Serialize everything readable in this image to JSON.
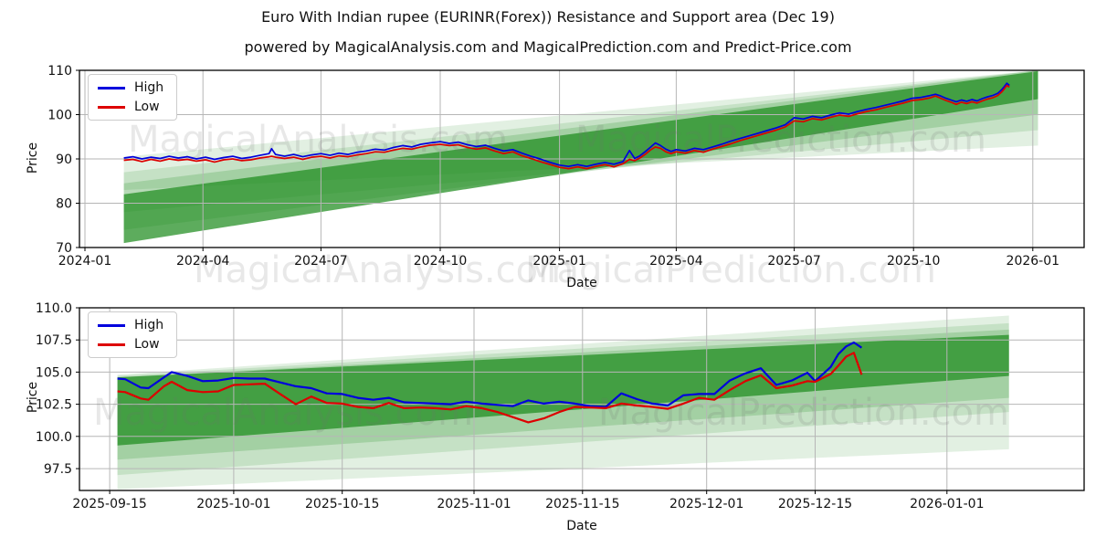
{
  "title": "Euro With Indian rupee (EURINR(Forex)) Resistance and Support area (Dec 19)",
  "subtitle": "powered by MagicalAnalysis.com and MagicalPrediction.com and Predict-Price.com",
  "watermarks": {
    "analysis": "MagicalAnalysis.com",
    "prediction": "MagicalPrediction.com"
  },
  "legend": {
    "high_label": "High",
    "low_label": "Low"
  },
  "axis": {
    "x_label": "Date",
    "y_label": "Price"
  },
  "colors": {
    "high": "#0000dd",
    "low": "#dd0000",
    "band": "#1f8c1f",
    "grid": "#b6b6b6",
    "spine": "#000000",
    "text": "#111111",
    "wm": "rgba(110,110,110,0.16)"
  },
  "chart_data": [
    {
      "type": "line",
      "name": "full-history",
      "x_epoch": "2024-01-01",
      "x_tick_labels": [
        "2024-01",
        "2024-04",
        "2024-07",
        "2024-10",
        "2025-01",
        "2025-04",
        "2025-07",
        "2025-10",
        "2026-01"
      ],
      "x_tick_days": [
        0,
        91,
        182,
        274,
        366,
        456,
        547,
        639,
        731
      ],
      "y_tick_labels": [
        "70",
        "80",
        "90",
        "100",
        "110"
      ],
      "y_tick_values": [
        70,
        80,
        90,
        100,
        110
      ],
      "xlim_days": [
        -4.2,
        770.6
      ],
      "ylim": [
        70,
        110
      ],
      "grid": true,
      "legend_position": "upper-left",
      "bands": [
        {
          "day_start": 30,
          "day_end": 735,
          "price_start": [
            83,
            90.5
          ],
          "price_end": [
            93,
            110
          ],
          "alpha": 0.13
        },
        {
          "day_start": 30,
          "day_end": 735,
          "price_start": [
            78,
            87
          ],
          "price_end": [
            96.5,
            110
          ],
          "alpha": 0.15
        },
        {
          "day_start": 30,
          "day_end": 735,
          "price_start": [
            74,
            84.5
          ],
          "price_end": [
            100,
            110
          ],
          "alpha": 0.2
        },
        {
          "day_start": 30,
          "day_end": 735,
          "price_start": [
            71,
            82
          ],
          "price_end": [
            103.5,
            109.8
          ],
          "alpha": 0.72
        }
      ],
      "series": [
        {
          "name": "High",
          "color_key": "high",
          "days": [
            30,
            37,
            44,
            51,
            58,
            65,
            72,
            79,
            86,
            93,
            100,
            107,
            114,
            121,
            128,
            135,
            142,
            144,
            147,
            154,
            161,
            168,
            175,
            182,
            189,
            196,
            203,
            210,
            217,
            224,
            231,
            238,
            245,
            252,
            259,
            266,
            274,
            281,
            288,
            295,
            302,
            309,
            316,
            323,
            330,
            337,
            344,
            351,
            358,
            366,
            373,
            380,
            387,
            394,
            401,
            408,
            415,
            420,
            424,
            428,
            432,
            436,
            440,
            444,
            448,
            452,
            456,
            463,
            470,
            477,
            484,
            491,
            498,
            505,
            512,
            519,
            526,
            533,
            540,
            547,
            554,
            561,
            568,
            575,
            582,
            589,
            596,
            603,
            610,
            617,
            624,
            631,
            638,
            645,
            652,
            656,
            660,
            664,
            668,
            672,
            676,
            680,
            684,
            688,
            692,
            696,
            700,
            704,
            707,
            709,
            711,
            713
          ],
          "values": [
            90.2,
            90.5,
            90.0,
            90.4,
            90.1,
            90.6,
            90.2,
            90.5,
            90.0,
            90.4,
            89.9,
            90.3,
            90.6,
            90.1,
            90.4,
            90.8,
            91.2,
            92.3,
            91.0,
            90.6,
            91.0,
            90.5,
            90.9,
            91.2,
            90.8,
            91.3,
            91.0,
            91.5,
            91.8,
            92.2,
            92.0,
            92.6,
            93.0,
            92.7,
            93.3,
            93.6,
            93.9,
            93.5,
            93.8,
            93.2,
            92.8,
            93.1,
            92.4,
            91.8,
            92.1,
            91.3,
            90.6,
            90.0,
            89.3,
            88.6,
            88.3,
            88.7,
            88.3,
            88.8,
            89.2,
            88.8,
            89.4,
            91.9,
            90.1,
            90.7,
            91.6,
            92.6,
            93.6,
            93.0,
            92.2,
            91.7,
            92.1,
            91.8,
            92.4,
            92.1,
            92.7,
            93.3,
            94.0,
            94.6,
            95.2,
            95.8,
            96.4,
            97.0,
            97.7,
            99.3,
            99.0,
            99.6,
            99.3,
            99.9,
            100.4,
            100.1,
            100.7,
            101.2,
            101.6,
            102.1,
            102.6,
            103.1,
            103.7,
            103.9,
            104.3,
            104.6,
            104.2,
            103.7,
            103.3,
            102.9,
            103.3,
            103.0,
            103.4,
            103.1,
            103.6,
            104.0,
            104.3,
            104.8,
            105.6,
            106.3,
            107.1,
            106.6
          ]
        },
        {
          "name": "Low",
          "color_key": "low",
          "days": [
            30,
            37,
            44,
            51,
            58,
            65,
            72,
            79,
            86,
            93,
            100,
            107,
            114,
            121,
            128,
            135,
            142,
            144,
            147,
            154,
            161,
            168,
            175,
            182,
            189,
            196,
            203,
            210,
            217,
            224,
            231,
            238,
            245,
            252,
            259,
            266,
            274,
            281,
            288,
            295,
            302,
            309,
            316,
            323,
            330,
            337,
            344,
            351,
            358,
            366,
            373,
            380,
            387,
            394,
            401,
            408,
            415,
            420,
            424,
            428,
            432,
            436,
            440,
            444,
            448,
            452,
            456,
            463,
            470,
            477,
            484,
            491,
            498,
            505,
            512,
            519,
            526,
            533,
            540,
            547,
            554,
            561,
            568,
            575,
            582,
            589,
            596,
            603,
            610,
            617,
            624,
            631,
            638,
            645,
            652,
            656,
            660,
            664,
            668,
            672,
            676,
            680,
            684,
            688,
            692,
            696,
            700,
            704,
            707,
            709,
            711,
            713
          ],
          "values": [
            89.7,
            89.9,
            89.4,
            89.9,
            89.5,
            90.0,
            89.7,
            89.9,
            89.5,
            89.8,
            89.3,
            89.8,
            90.0,
            89.6,
            89.8,
            90.2,
            90.5,
            90.6,
            90.4,
            90.1,
            90.4,
            89.9,
            90.4,
            90.6,
            90.2,
            90.7,
            90.5,
            90.9,
            91.2,
            91.6,
            91.5,
            92.0,
            92.4,
            92.2,
            92.7,
            93.1,
            93.3,
            93.0,
            93.2,
            92.6,
            92.2,
            92.5,
            91.8,
            91.2,
            91.6,
            90.7,
            90.1,
            89.4,
            88.8,
            88.1,
            87.8,
            88.2,
            87.8,
            88.3,
            88.7,
            88.2,
            88.9,
            89.9,
            89.6,
            90.2,
            91.0,
            92.0,
            92.7,
            92.4,
            91.6,
            91.2,
            91.6,
            91.3,
            91.9,
            91.5,
            92.2,
            92.8,
            93.4,
            94.1,
            94.7,
            95.3,
            95.9,
            96.5,
            97.2,
            98.6,
            98.4,
            99.1,
            98.8,
            99.4,
            99.9,
            99.6,
            100.2,
            100.7,
            101.1,
            101.6,
            102.1,
            102.6,
            103.2,
            103.4,
            103.8,
            104.2,
            103.7,
            103.2,
            102.8,
            102.3,
            102.8,
            102.5,
            102.9,
            102.6,
            103.1,
            103.5,
            103.8,
            104.3,
            105.1,
            105.8,
            106.6,
            106.2
          ]
        }
      ]
    },
    {
      "type": "line",
      "name": "recent-zoom",
      "x_epoch": "2025-09-15",
      "x_tick_labels": [
        "2025-09-15",
        "2025-10-01",
        "2025-10-15",
        "2025-11-01",
        "2025-11-15",
        "2025-12-01",
        "2025-12-15",
        "2026-01-01"
      ],
      "x_tick_days": [
        0,
        16,
        30,
        47,
        61,
        77,
        91,
        108
      ],
      "y_tick_labels": [
        "97.5",
        "100.0",
        "102.5",
        "105.0",
        "107.5",
        "110.0"
      ],
      "y_tick_values": [
        97.5,
        100,
        102.5,
        105,
        107.5,
        110
      ],
      "xlim_days": [
        -3.9,
        125.7
      ],
      "ylim": [
        95.8,
        110
      ],
      "grid": true,
      "legend_position": "upper-left",
      "bands": [
        {
          "day_start": 1,
          "day_end": 116,
          "price_start": [
            95.9,
            104.8
          ],
          "price_end": [
            99.0,
            109.4
          ],
          "alpha": 0.13
        },
        {
          "day_start": 1,
          "day_end": 116,
          "price_start": [
            97.0,
            104.7
          ],
          "price_end": [
            101.9,
            108.8
          ],
          "alpha": 0.15
        },
        {
          "day_start": 1,
          "day_end": 116,
          "price_start": [
            98.2,
            104.6
          ],
          "price_end": [
            103.0,
            108.3
          ],
          "alpha": 0.2
        },
        {
          "day_start": 1,
          "day_end": 116,
          "price_start": [
            99.3,
            104.6
          ],
          "price_end": [
            104.7,
            107.9
          ],
          "alpha": 0.72
        }
      ],
      "series": [
        {
          "name": "High",
          "color_key": "high",
          "days": [
            1,
            2,
            4,
            5,
            7,
            8,
            10,
            12,
            14,
            16,
            18,
            20,
            22,
            24,
            26,
            28,
            30,
            32,
            34,
            36,
            38,
            40,
            42,
            44,
            46,
            48,
            50,
            52,
            54,
            56,
            58,
            60,
            62,
            64,
            66,
            68,
            70,
            72,
            74,
            76,
            78,
            80,
            82,
            84,
            86,
            88,
            90,
            91,
            93,
            94,
            95,
            96,
            97
          ],
          "values": [
            104.5,
            104.45,
            103.8,
            103.75,
            104.6,
            105.0,
            104.7,
            104.3,
            104.35,
            104.55,
            104.5,
            104.5,
            104.2,
            103.9,
            103.75,
            103.35,
            103.3,
            103.0,
            102.85,
            103.0,
            102.65,
            102.6,
            102.55,
            102.5,
            102.7,
            102.55,
            102.45,
            102.35,
            102.8,
            102.55,
            102.7,
            102.55,
            102.35,
            102.3,
            103.35,
            102.9,
            102.55,
            102.4,
            103.2,
            103.3,
            103.3,
            104.35,
            104.9,
            105.3,
            104.0,
            104.35,
            104.95,
            104.3,
            105.4,
            106.4,
            107.0,
            107.3,
            106.9
          ]
        },
        {
          "name": "Low",
          "color_key": "low",
          "days": [
            1,
            2,
            4,
            5,
            7,
            8,
            10,
            12,
            14,
            16,
            18,
            20,
            22,
            24,
            26,
            28,
            30,
            32,
            34,
            36,
            38,
            40,
            42,
            44,
            46,
            48,
            50,
            52,
            54,
            56,
            58,
            60,
            62,
            64,
            66,
            68,
            70,
            72,
            74,
            76,
            78,
            80,
            82,
            84,
            86,
            88,
            90,
            91,
            93,
            94,
            95,
            96,
            97
          ],
          "values": [
            103.5,
            103.45,
            102.95,
            102.85,
            103.9,
            104.25,
            103.6,
            103.45,
            103.5,
            104.0,
            104.05,
            104.1,
            103.3,
            102.5,
            103.1,
            102.6,
            102.55,
            102.3,
            102.2,
            102.6,
            102.2,
            102.25,
            102.2,
            102.1,
            102.35,
            102.2,
            101.9,
            101.5,
            101.1,
            101.4,
            101.9,
            102.3,
            102.25,
            102.2,
            102.55,
            102.4,
            102.3,
            102.15,
            102.55,
            103.0,
            102.85,
            103.6,
            104.3,
            104.75,
            103.75,
            103.95,
            104.3,
            104.25,
            104.85,
            105.5,
            106.2,
            106.5,
            104.8
          ]
        }
      ]
    }
  ]
}
